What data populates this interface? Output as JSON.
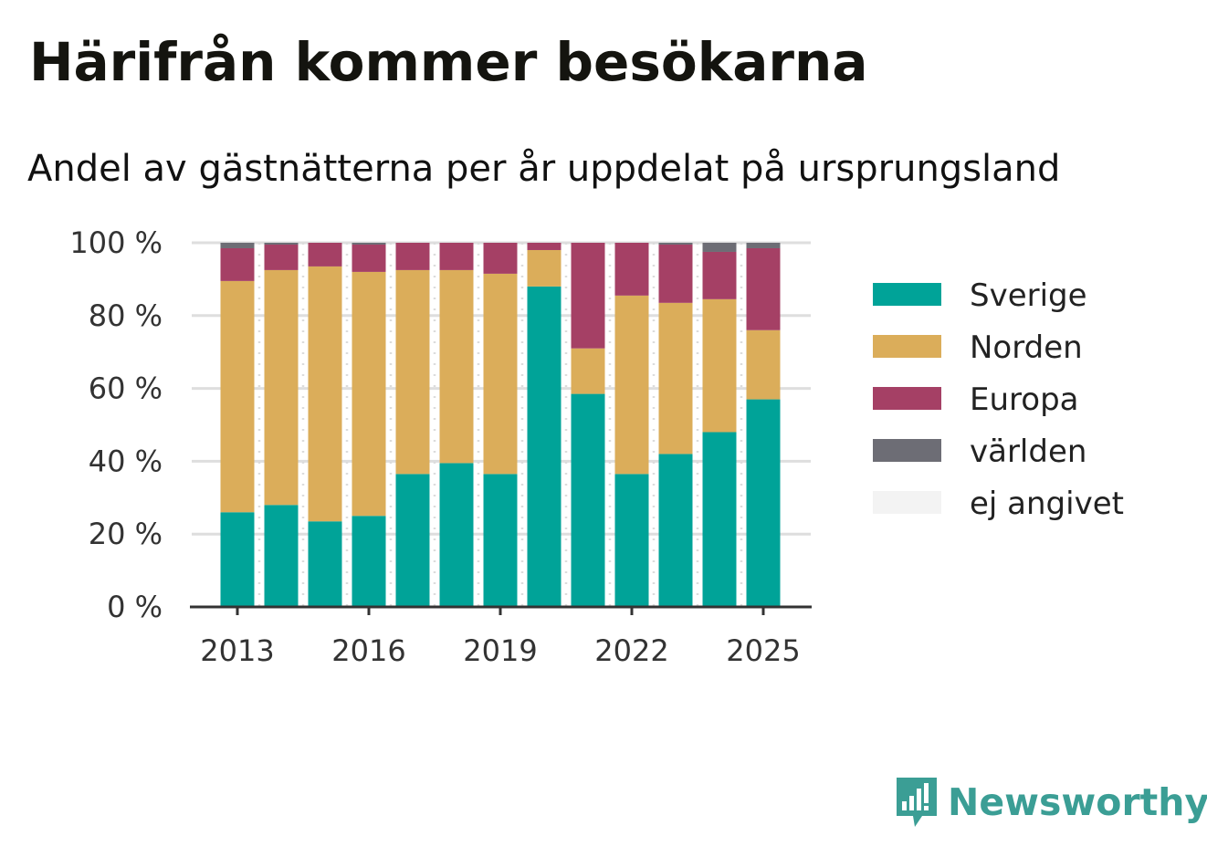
{
  "title": "Härifrån kommer besökarna",
  "subtitle": "Andel av gästnätterna per år uppdelat på ursprungsland",
  "brand": {
    "name": "Newsworthy",
    "logo_icon": "newsworthy-bar-chart-logo-icon",
    "color": "#3b9e95"
  },
  "chart_data": {
    "type": "bar",
    "stacked": true,
    "x": [
      2013,
      2014,
      2015,
      2016,
      2017,
      2018,
      2019,
      2020,
      2021,
      2022,
      2023,
      2024,
      2025
    ],
    "x_tick_labels": [
      "2013",
      "2016",
      "2019",
      "2022",
      "2025"
    ],
    "x_tick_values": [
      2013,
      2016,
      2019,
      2022,
      2025
    ],
    "ylim": [
      0,
      100
    ],
    "y_ticks": [
      0,
      20,
      40,
      60,
      80,
      100
    ],
    "y_tick_labels": [
      "0 %",
      "20 %",
      "40 %",
      "60 %",
      "80 %",
      "100 %"
    ],
    "grid": true,
    "legend_position": "right",
    "series": [
      {
        "name": "Sverige",
        "color": "#00a398",
        "values": [
          26,
          28,
          23.5,
          25,
          36.5,
          39.5,
          36.5,
          88,
          58.5,
          36.5,
          42,
          48,
          57
        ]
      },
      {
        "name": "Norden",
        "color": "#dbad5a",
        "values": [
          63.5,
          64.5,
          70,
          67,
          56,
          53,
          55,
          10,
          12.5,
          49,
          41.5,
          36.5,
          19
        ]
      },
      {
        "name": "Europa",
        "color": "#a54065",
        "values": [
          9,
          7,
          6.5,
          7.5,
          7.5,
          7.5,
          8.5,
          2,
          29,
          14.5,
          16,
          13,
          22.5
        ]
      },
      {
        "name": "världen",
        "color": "#6d6d75",
        "values": [
          1.5,
          0.5,
          0,
          0.5,
          0,
          0,
          0,
          0,
          0,
          0,
          0.5,
          2.5,
          1.5
        ]
      },
      {
        "name": "ej angivet",
        "color": "#f3f3f3",
        "values": [
          0,
          0,
          0,
          0,
          0,
          0,
          0,
          0,
          0,
          0,
          0,
          0,
          0
        ]
      }
    ]
  }
}
